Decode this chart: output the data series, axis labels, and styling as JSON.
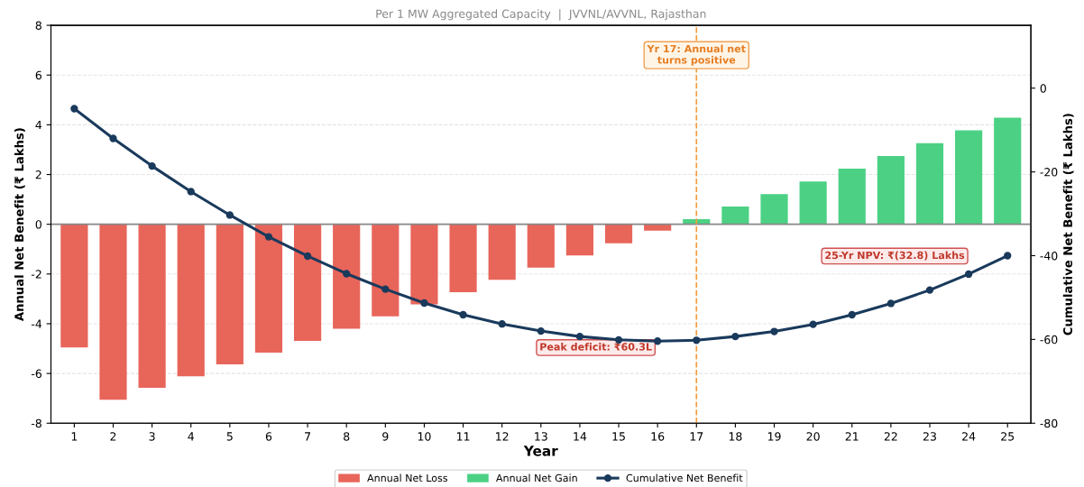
{
  "chart_data": {
    "type": "bar",
    "title": "Per 1 MW Aggregated Capacity  |  JVVNL/AVVNL, Rajasthan",
    "xlabel": "Year",
    "ylabel": "Annual Net Benefit (₹ Lakhs)",
    "y2label": "Cumulative Net Benefit (₹ Lakhs)",
    "categories": [
      "1",
      "2",
      "3",
      "4",
      "5",
      "6",
      "7",
      "8",
      "9",
      "10",
      "11",
      "12",
      "13",
      "14",
      "15",
      "16",
      "17",
      "18",
      "19",
      "20",
      "21",
      "22",
      "23",
      "24",
      "25"
    ],
    "series": [
      {
        "name": "Annual Net Loss",
        "color": "#e8655a",
        "values": [
          -4.95,
          -7.06,
          -6.58,
          -6.11,
          -5.63,
          -5.16,
          -4.69,
          -4.2,
          -3.7,
          -3.22,
          -2.73,
          -2.23,
          -1.74,
          -1.25,
          -0.76,
          -0.26,
          null,
          null,
          null,
          null,
          null,
          null,
          null,
          null,
          null
        ]
      },
      {
        "name": "Annual Net Gain",
        "color": "#4cd184",
        "values": [
          null,
          null,
          null,
          null,
          null,
          null,
          null,
          null,
          null,
          null,
          null,
          null,
          null,
          null,
          null,
          null,
          0.21,
          0.71,
          1.21,
          1.72,
          2.24,
          2.74,
          3.26,
          3.78,
          4.29
        ]
      },
      {
        "name": "Cumulative Net Benefit",
        "type": "line",
        "axis": "y2",
        "color": "#1a3a5c",
        "marker": "circle",
        "values": [
          -4.9,
          -12.0,
          -18.6,
          -24.7,
          -30.3,
          -35.5,
          -40.1,
          -44.3,
          -48.0,
          -51.3,
          -54.1,
          -56.3,
          -58.0,
          -59.3,
          -60.1,
          -60.4,
          -60.2,
          -59.3,
          -58.1,
          -56.4,
          -54.1,
          -51.4,
          -48.2,
          -44.4,
          -40.0
        ]
      }
    ],
    "ylim": [
      -8,
      8
    ],
    "yticks": [
      -8,
      -6,
      -4,
      -2,
      0,
      2,
      4,
      6,
      8
    ],
    "y2lim": [
      -80,
      15
    ],
    "y2ticks": [
      -80,
      -60,
      -40,
      -20,
      0
    ],
    "ref_lines": [
      {
        "axis": "y",
        "value": 0,
        "color": "#888888",
        "line_style": "solid"
      },
      {
        "axis": "x",
        "value": "17",
        "label": "Yr 17: Annual net\nturns positive",
        "color": "#f39c3c",
        "line_style": "dashed"
      }
    ],
    "annotations": [
      "Peak deficit: ₹60.3L",
      "25-Yr NPV: ₹(32.8) Lakhs"
    ],
    "grid": "y",
    "legend": "bottom"
  }
}
